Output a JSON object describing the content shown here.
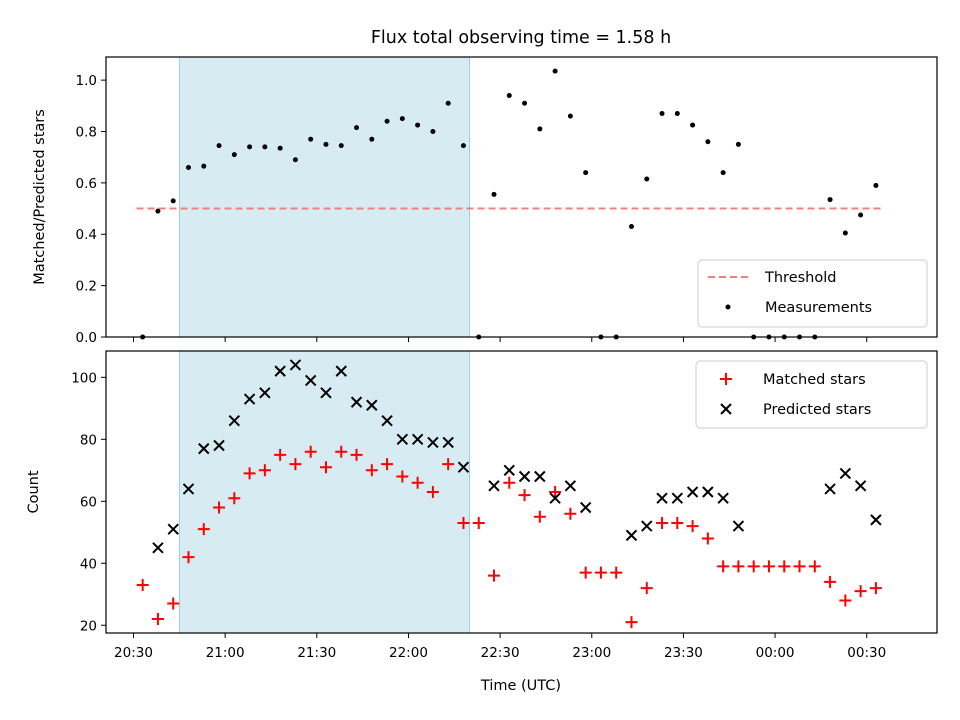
{
  "chart_data": [
    {
      "type": "scatter",
      "title": "Flux total observing time = 1.58 h",
      "xlabel": "",
      "ylabel": "Matched/Predicted stars",
      "x_unit": "UTC minutes (20:30 = 0)",
      "xlim": [
        "20:21",
        "00:53"
      ],
      "ylim": [
        0,
        1.09
      ],
      "yticks": [
        "0.0",
        "0.2",
        "0.4",
        "0.6",
        "0.8",
        "1.0"
      ],
      "shaded_interval": [
        "20:45",
        "22:20"
      ],
      "threshold": {
        "name": "Threshold",
        "value": 0.5,
        "x_range": [
          "20:31",
          "00:35"
        ],
        "color": "#f08080"
      },
      "legend_position": "lower right",
      "legend": [
        "Threshold",
        "Measurements"
      ],
      "series": [
        {
          "name": "Measurements",
          "color": "#000000",
          "x": [
            "20:33",
            "20:38",
            "20:43",
            "20:48",
            "20:53",
            "20:58",
            "21:03",
            "21:08",
            "21:13",
            "21:18",
            "21:23",
            "21:28",
            "21:33",
            "21:38",
            "21:43",
            "21:48",
            "21:53",
            "21:58",
            "22:03",
            "22:08",
            "22:13",
            "22:18",
            "22:23",
            "22:28",
            "22:33",
            "22:38",
            "22:43",
            "22:48",
            "22:53",
            "22:58",
            "23:03",
            "23:08",
            "23:13",
            "23:18",
            "23:23",
            "23:28",
            "23:33",
            "23:38",
            "23:43",
            "23:48",
            "23:53",
            "23:58",
            "00:03",
            "00:08",
            "00:13",
            "00:18",
            "00:23",
            "00:28",
            "00:33"
          ],
          "y": [
            0.0,
            0.49,
            0.53,
            0.66,
            0.665,
            0.745,
            0.71,
            0.74,
            0.74,
            0.735,
            0.69,
            0.77,
            0.75,
            0.745,
            0.815,
            0.77,
            0.84,
            0.85,
            0.825,
            0.8,
            0.91,
            0.745,
            0.0,
            0.555,
            0.94,
            0.91,
            0.81,
            1.035,
            0.86,
            0.64,
            0.0,
            0.0,
            0.43,
            0.615,
            0.87,
            0.87,
            0.825,
            0.76,
            0.64,
            0.75,
            0.0,
            0.0,
            0.0,
            0.0,
            0.0,
            0.535,
            0.405,
            0.475,
            0.59
          ]
        }
      ]
    },
    {
      "type": "scatter",
      "title": "",
      "xlabel": "Time (UTC)",
      "ylabel": "Count",
      "xlim": [
        "20:21",
        "00:53"
      ],
      "ylim": [
        17.5,
        108.5
      ],
      "xticks": [
        "20:30",
        "21:00",
        "21:30",
        "22:00",
        "22:30",
        "23:00",
        "23:30",
        "00:00",
        "00:30"
      ],
      "yticks": [
        "20",
        "40",
        "60",
        "80",
        "100"
      ],
      "shaded_interval": [
        "20:45",
        "22:20"
      ],
      "legend_position": "upper right",
      "legend": [
        "Matched stars",
        "Predicted stars"
      ],
      "series": [
        {
          "name": "Matched stars",
          "marker": "+",
          "color": "#ff0000",
          "x": [
            "20:33",
            "20:38",
            "20:43",
            "20:48",
            "20:53",
            "20:58",
            "21:03",
            "21:08",
            "21:13",
            "21:18",
            "21:23",
            "21:28",
            "21:33",
            "21:38",
            "21:43",
            "21:48",
            "21:53",
            "21:58",
            "22:03",
            "22:08",
            "22:13",
            "22:18",
            "22:23",
            "22:28",
            "22:33",
            "22:38",
            "22:43",
            "22:48",
            "22:53",
            "22:58",
            "23:03",
            "23:08",
            "23:13",
            "23:18",
            "23:23",
            "23:28",
            "23:33",
            "23:38",
            "23:43",
            "23:48",
            "23:53",
            "23:58",
            "00:03",
            "00:08",
            "00:13",
            "00:18",
            "00:23",
            "00:28",
            "00:33"
          ],
          "y": [
            33,
            22,
            27,
            42,
            51,
            58,
            61,
            69,
            70,
            75,
            72,
            76,
            71,
            76,
            75,
            70,
            72,
            68,
            66,
            63,
            72,
            53,
            53,
            36,
            66,
            62,
            55,
            63,
            56,
            37,
            37,
            37,
            21,
            32,
            53,
            53,
            52,
            48,
            39,
            39,
            39,
            39,
            39,
            39,
            39,
            34,
            28,
            31,
            32
          ]
        },
        {
          "name": "Predicted stars",
          "marker": "x",
          "color": "#000000",
          "x": [
            "20:38",
            "20:43",
            "20:48",
            "20:53",
            "20:58",
            "21:03",
            "21:08",
            "21:13",
            "21:18",
            "21:23",
            "21:28",
            "21:33",
            "21:38",
            "21:43",
            "21:48",
            "21:53",
            "21:58",
            "22:03",
            "22:08",
            "22:13",
            "22:18",
            "22:28",
            "22:33",
            "22:38",
            "22:43",
            "22:48",
            "22:53",
            "22:58",
            "23:13",
            "23:18",
            "23:23",
            "23:28",
            "23:33",
            "23:38",
            "23:43",
            "23:48",
            "00:18",
            "00:23",
            "00:28",
            "00:33"
          ],
          "y": [
            45,
            51,
            64,
            77,
            78,
            86,
            93,
            95,
            102,
            104,
            99,
            95,
            102,
            92,
            91,
            86,
            80,
            80,
            79,
            79,
            71,
            65,
            70,
            68,
            68,
            61,
            65,
            58,
            49,
            52,
            61,
            61,
            63,
            63,
            61,
            52,
            64,
            69,
            65,
            54
          ]
        }
      ]
    }
  ]
}
